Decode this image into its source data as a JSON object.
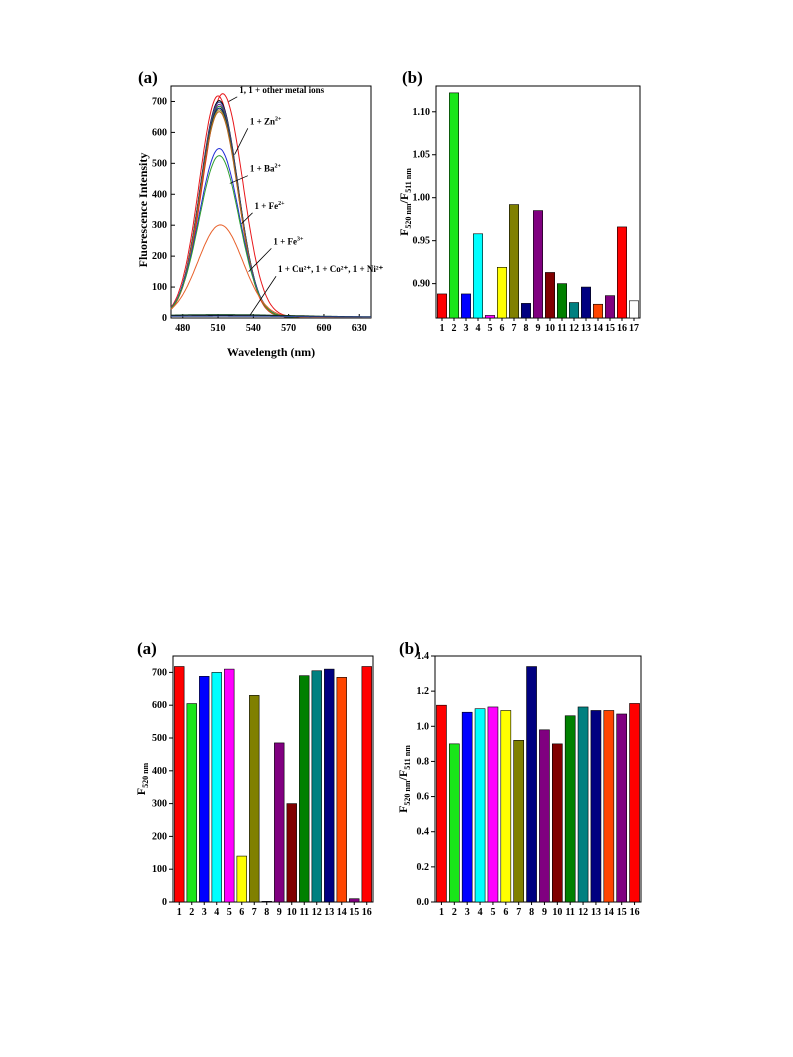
{
  "figures": [
    {
      "panel_label": "(a)"
    },
    {
      "panel_label": "(b)"
    },
    {
      "panel_label": "(a)"
    },
    {
      "panel_label": "(b)"
    }
  ],
  "chart_data": [
    {
      "type": "line",
      "panel_label": "(a)",
      "xlabel": "Wavelength (nm)",
      "ylabel": "Fluorescence Intensity",
      "xlim": [
        470,
        640
      ],
      "ylim": [
        0,
        750
      ],
      "xticks": [
        480,
        510,
        540,
        570,
        600,
        630
      ],
      "yticks": [
        0,
        100,
        200,
        300,
        400,
        500,
        600,
        700
      ],
      "series": [
        {
          "peak_x": 514,
          "peak_y": 722,
          "width": 17,
          "color": "#e8171b"
        },
        {
          "peak_x": 510,
          "peak_y": 715,
          "width": 16,
          "color": "#e8171b"
        },
        {
          "peak_x": 511,
          "peak_y": 700,
          "width": 16,
          "color": "#000000"
        },
        {
          "peak_x": 511,
          "peak_y": 695,
          "width": 16,
          "color": "#2e4a9e"
        },
        {
          "peak_x": 511,
          "peak_y": 688,
          "width": 16,
          "color": "#6a2a7f"
        },
        {
          "peak_x": 511,
          "peak_y": 682,
          "width": 16,
          "color": "#1d7f2a"
        },
        {
          "peak_x": 511,
          "peak_y": 676,
          "width": 16,
          "color": "#000080"
        },
        {
          "peak_x": 511,
          "peak_y": 670,
          "width": 16,
          "color": "#8a8a1a"
        },
        {
          "peak_x": 511,
          "peak_y": 664,
          "width": 16,
          "color": "#b5651d"
        },
        {
          "peak_x": 511,
          "peak_y": 545,
          "width": 17,
          "color": "#1f2bd6"
        },
        {
          "peak_x": 511,
          "peak_y": 522,
          "width": 17,
          "color": "#2f9e2f"
        },
        {
          "peak_x": 512,
          "peak_y": 298,
          "width": 19,
          "color": "#e8612b"
        },
        {
          "peak_x": 512,
          "peak_y": 8,
          "width": 60,
          "color": "#1d4f2a"
        },
        {
          "peak_x": 512,
          "peak_y": 5,
          "width": 60,
          "color": "#000000"
        },
        {
          "peak_x": 512,
          "peak_y": 3,
          "width": 60,
          "color": "#2e4a9e"
        }
      ],
      "annotations": [
        {
          "text": "1, 1 + other metal ions"
        },
        {
          "text": "1 + Zn",
          "sup": "2+"
        },
        {
          "text": "1 + Ba",
          "sup": "2+"
        },
        {
          "text": "1 + Fe",
          "sup": "2+"
        },
        {
          "text": "1 + Fe",
          "sup": "3+"
        },
        {
          "text": "1 + Cu²⁺, 1 + Co²⁺, 1 + Ni²⁺"
        }
      ]
    },
    {
      "type": "bar",
      "panel_label": "(b)",
      "ylabel": "F",
      "ylabel_sub1": "520 nm",
      "ylabel_mid": "/F",
      "ylabel_sub2": "511 nm",
      "ylim": [
        0.86,
        1.13
      ],
      "yticks": [
        "0.90",
        "0.95",
        "1.00",
        "1.05",
        "1.10"
      ],
      "categories": [
        "1",
        "2",
        "3",
        "4",
        "5",
        "6",
        "7",
        "8",
        "9",
        "10",
        "11",
        "12",
        "13",
        "14",
        "15",
        "16",
        "17"
      ],
      "values": [
        0.888,
        1.122,
        0.888,
        0.958,
        0.863,
        0.919,
        0.992,
        0.877,
        0.985,
        0.913,
        0.9,
        0.878,
        0.896,
        0.876,
        0.886,
        0.966,
        0.88
      ],
      "colors": [
        "#ff0000",
        "#19e619",
        "#0000ff",
        "#00ffff",
        "#ff00ff",
        "#ffff00",
        "#808000",
        "#000080",
        "#800080",
        "#800000",
        "#008000",
        "#008080",
        "#000080",
        "#ff4500",
        "#800080",
        "#ff0000",
        "#ffffff"
      ]
    },
    {
      "type": "bar",
      "panel_label": "(a)",
      "ylabel": "F",
      "ylabel_sub1": "520 nm",
      "ylim": [
        0,
        750
      ],
      "yticks": [
        "0",
        "100",
        "200",
        "300",
        "400",
        "500",
        "600",
        "700"
      ],
      "categories": [
        "1",
        "2",
        "3",
        "4",
        "5",
        "6",
        "7",
        "8",
        "9",
        "10",
        "11",
        "12",
        "13",
        "14",
        "15",
        "16"
      ],
      "values": [
        718,
        605,
        688,
        700,
        710,
        140,
        630,
        2,
        485,
        300,
        690,
        705,
        710,
        685,
        10,
        718
      ],
      "colors": [
        "#ff0000",
        "#19e619",
        "#0000ff",
        "#00ffff",
        "#ff00ff",
        "#ffff00",
        "#808000",
        "#000080",
        "#800080",
        "#800000",
        "#008000",
        "#008080",
        "#000080",
        "#ff4500",
        "#800080",
        "#ff0000"
      ]
    },
    {
      "type": "bar",
      "panel_label": "(b)",
      "ylabel": "F",
      "ylabel_sub1": "520 nm",
      "ylabel_mid": "/F",
      "ylabel_sub2": "511 nm",
      "ylim": [
        0,
        1.4
      ],
      "yticks": [
        "0.0",
        "0.2",
        "0.4",
        "0.6",
        "0.8",
        "1.0",
        "1.2",
        "1.4"
      ],
      "categories": [
        "1",
        "2",
        "3",
        "4",
        "5",
        "6",
        "7",
        "8",
        "9",
        "10",
        "11",
        "12",
        "13",
        "14",
        "15",
        "16"
      ],
      "values": [
        1.12,
        0.9,
        1.08,
        1.1,
        1.11,
        1.09,
        0.92,
        1.34,
        0.98,
        0.9,
        1.06,
        1.11,
        1.09,
        1.09,
        1.07,
        1.13
      ],
      "colors": [
        "#ff0000",
        "#19e619",
        "#0000ff",
        "#00ffff",
        "#ff00ff",
        "#ffff00",
        "#808000",
        "#000080",
        "#800080",
        "#800000",
        "#008000",
        "#008080",
        "#000080",
        "#ff4500",
        "#800080",
        "#ff0000"
      ]
    }
  ]
}
